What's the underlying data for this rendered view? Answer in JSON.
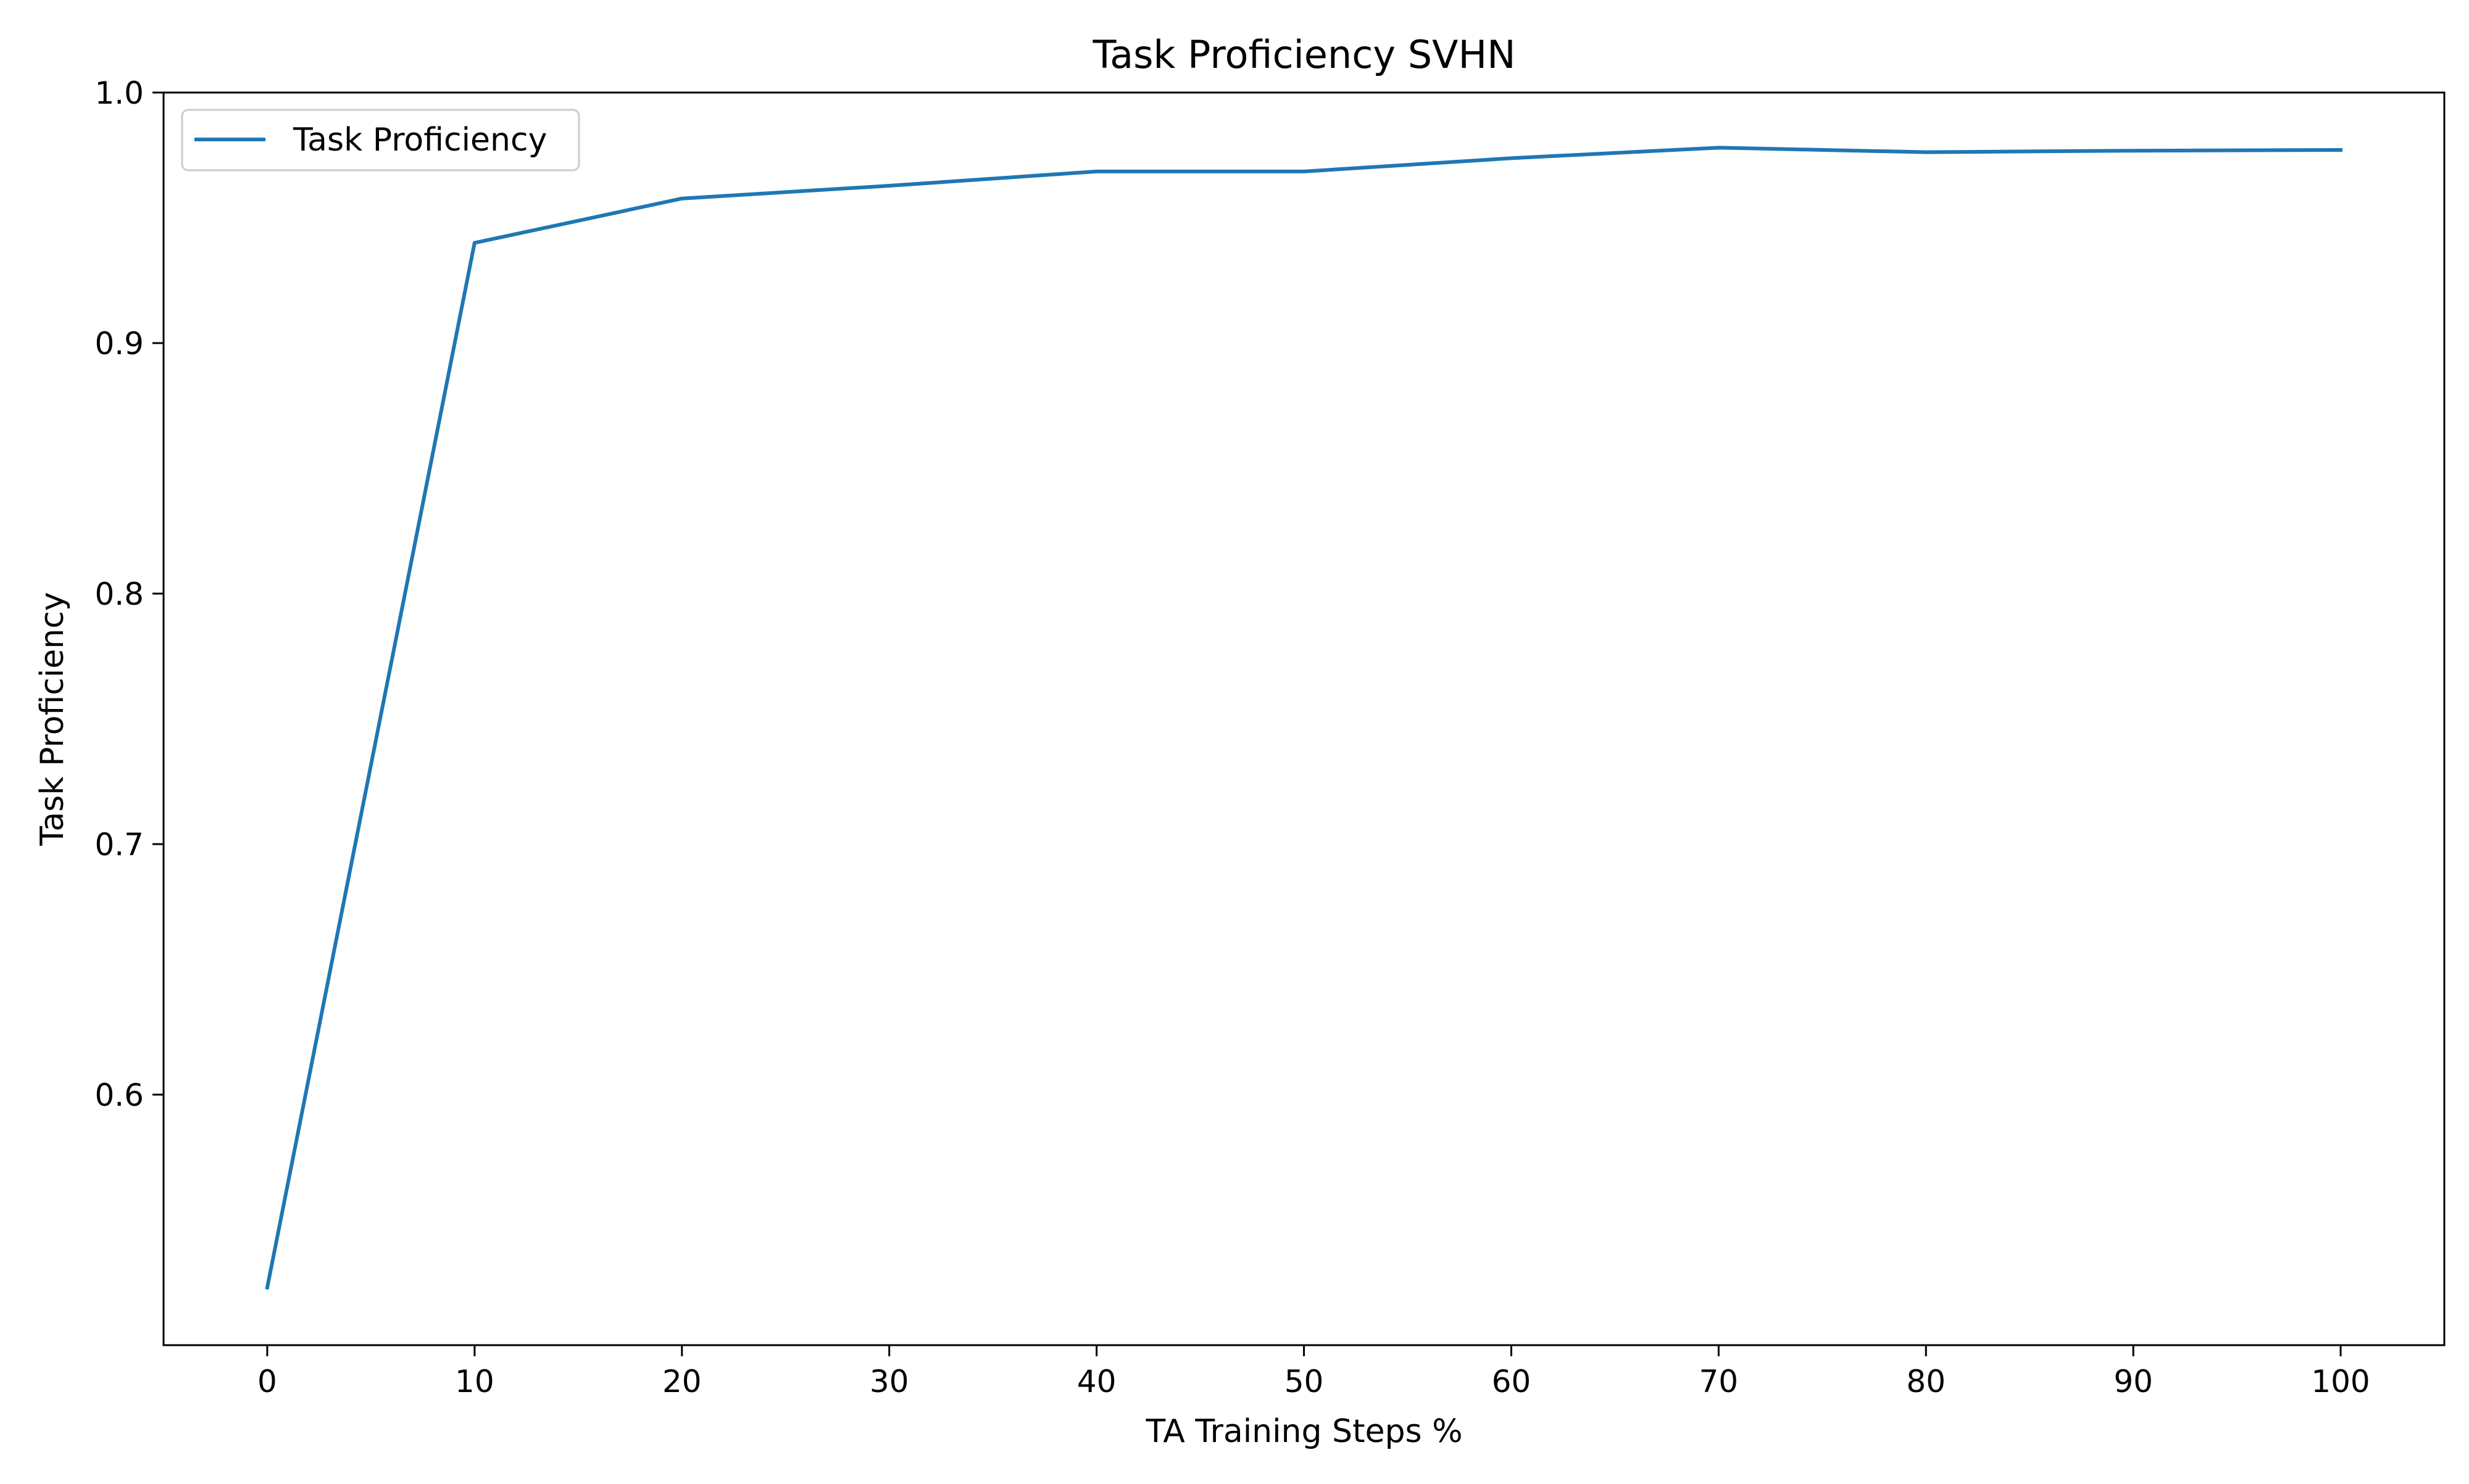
{
  "chart_data": {
    "type": "line",
    "title": "Task Proficiency SVHN",
    "xlabel": "TA Training Steps %",
    "ylabel": "Task Proficiency",
    "x": [
      0,
      10,
      20,
      30,
      40,
      50,
      60,
      70,
      80,
      90,
      100
    ],
    "series": [
      {
        "name": "Task Proficiency",
        "color": "#1f77b4",
        "values": [
          0.523,
          0.94,
          0.9577,
          0.9628,
          0.9685,
          0.9685,
          0.9738,
          0.978,
          0.9762,
          0.9768,
          0.9771
        ]
      }
    ],
    "xlim": [
      -5,
      105
    ],
    "ylim": [
      0.5,
      1.0
    ],
    "xticks": [
      0,
      10,
      20,
      30,
      40,
      50,
      60,
      70,
      80,
      90,
      100
    ],
    "yticks": [
      0.6,
      0.7,
      0.8,
      0.9,
      1.0
    ],
    "xtick_labels": [
      "0",
      "10",
      "20",
      "30",
      "40",
      "50",
      "60",
      "70",
      "80",
      "90",
      "100"
    ],
    "ytick_labels": [
      "0.6",
      "0.7",
      "0.8",
      "0.9",
      "1.0"
    ],
    "grid": false,
    "legend_position": "top-left"
  }
}
